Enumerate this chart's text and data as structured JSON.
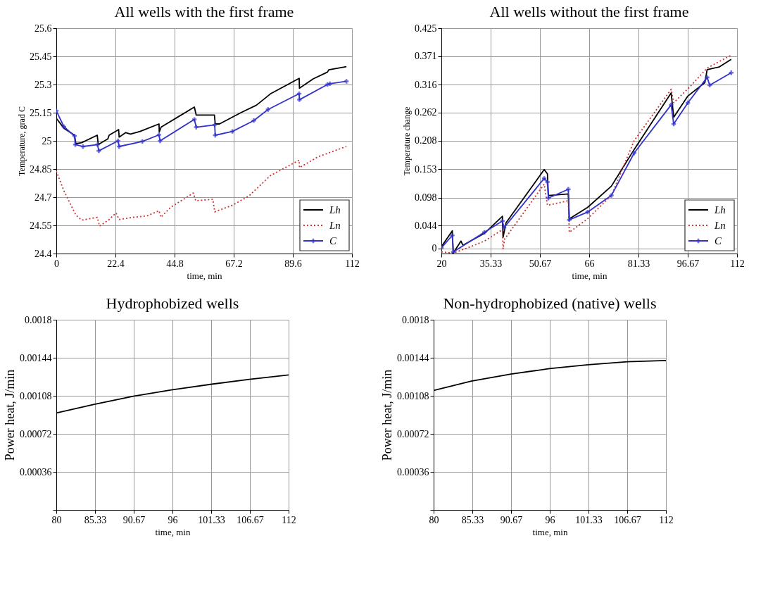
{
  "chart_data": [
    {
      "type": "line",
      "title": "All wells with the first frame",
      "xlabel": "time, min",
      "ylabel": "Temperature, grad C",
      "xlim": [
        0,
        112
      ],
      "xticks": [
        0,
        22.4,
        44.8,
        67.2,
        89.6,
        112
      ],
      "ylim": [
        24.4,
        25.6
      ],
      "yticks": [
        24.4,
        24.55,
        24.7,
        24.85,
        25,
        25.15,
        25.3,
        25.45,
        25.6
      ],
      "grid": true,
      "legend": "bottom right",
      "series": [
        {
          "name": "Lh",
          "color": "#000000",
          "line_style": "solid",
          "marker": "none",
          "x": [
            0,
            2.9,
            6.9,
            7.4,
            9.6,
            15.5,
            15.9,
            19.5,
            20,
            23.6,
            23.8,
            26.3,
            28.1,
            31.7,
            38.9,
            39,
            39.7,
            52.3,
            53,
            59.9,
            60.2,
            61.8,
            70.3,
            75.8,
            81.1,
            92,
            92.1,
            97.3,
            102.7,
            103.2,
            109.9
          ],
          "values": [
            25.12,
            25.067,
            25.03,
            24.985,
            24.99,
            25.03,
            24.98,
            25.01,
            25.03,
            25.06,
            25.02,
            25.044,
            25.036,
            25.05,
            25.09,
            25.047,
            25.073,
            25.18,
            25.137,
            25.137,
            25.09,
            25.09,
            25.153,
            25.19,
            25.25,
            25.333,
            25.28,
            25.33,
            25.366,
            25.378,
            25.395
          ]
        },
        {
          "name": "Ln",
          "color": "#cc3333",
          "line_style": "dotted",
          "marker": "none",
          "x": [
            0,
            2.9,
            7.4,
            9.6,
            15.5,
            16.4,
            20,
            22.6,
            23.8,
            29,
            34.3,
            38.9,
            39.6,
            43.3,
            51.9,
            52.8,
            59.3,
            60,
            66.7,
            73,
            81.1,
            92,
            92.1,
            99.1,
            109.9
          ],
          "values": [
            24.839,
            24.733,
            24.605,
            24.578,
            24.593,
            24.546,
            24.581,
            24.616,
            24.581,
            24.593,
            24.6,
            24.628,
            24.593,
            24.646,
            24.722,
            24.681,
            24.689,
            24.622,
            24.657,
            24.707,
            24.815,
            24.897,
            24.857,
            24.915,
            24.97
          ]
        },
        {
          "name": "C",
          "color": "#3333cc",
          "line_style": "solid",
          "marker": "cross",
          "x": [
            0,
            2.9,
            6.9,
            7.2,
            10.1,
            15.6,
            16.1,
            23.4,
            23.8,
            32.6,
            38.9,
            39.3,
            52.3,
            53,
            60,
            60.2,
            66.7,
            74.8,
            80.2,
            92,
            92.1,
            102.7,
            103.6,
            109.9
          ],
          "values": [
            25.16,
            25.075,
            25.026,
            24.98,
            24.97,
            24.98,
            24.947,
            25.0,
            24.97,
            24.997,
            25.032,
            25.0,
            25.114,
            25.073,
            25.085,
            25.03,
            25.05,
            25.108,
            25.167,
            25.251,
            25.219,
            25.3,
            25.304,
            25.317
          ]
        }
      ]
    },
    {
      "type": "line",
      "title": "All wells without the first frame",
      "xlabel": "time, min",
      "ylabel": "Temperature change",
      "xlim": [
        20,
        112
      ],
      "xticks": [
        20,
        35.33,
        50.67,
        66,
        81.33,
        96.67,
        112
      ],
      "ylim": [
        -0.01,
        0.425
      ],
      "yticks": [
        0,
        0.044,
        0.098,
        0.153,
        0.208,
        0.262,
        0.316,
        0.371,
        0.425
      ],
      "grid": true,
      "legend": "bottom right",
      "series": [
        {
          "name": "Lh",
          "color": "#000000",
          "line_style": "solid",
          "marker": "none",
          "x": [
            20,
            23.4,
            23.7,
            26.1,
            26.7,
            33.4,
            39,
            39.2,
            40.1,
            52,
            53,
            53.3,
            59.5,
            59.8,
            65.5,
            72.9,
            80,
            91.5,
            92.3,
            96.7,
            102,
            102.7,
            106.4,
            110.2
          ],
          "values": [
            0.003,
            0.034,
            -0.009,
            0.014,
            0.006,
            0.029,
            0.062,
            0.021,
            0.049,
            0.152,
            0.144,
            0.102,
            0.105,
            0.057,
            0.079,
            0.12,
            0.191,
            0.3,
            0.253,
            0.294,
            0.32,
            0.345,
            0.35,
            0.365
          ]
        },
        {
          "name": "Ln",
          "color": "#cc3333",
          "line_style": "dotted",
          "marker": "none",
          "x": [
            20,
            23.7,
            28.2,
            33.4,
            39,
            39.2,
            39.7,
            52,
            53,
            59.5,
            59.8,
            65.5,
            72.9,
            80,
            91.5,
            92.3,
            97.5,
            102.7,
            110.2
          ],
          "values": [
            -0.007,
            -0.009,
            0.001,
            0.014,
            0.036,
            -0.001,
            0.018,
            0.124,
            0.083,
            0.092,
            0.031,
            0.057,
            0.102,
            0.208,
            0.307,
            0.281,
            0.313,
            0.348,
            0.373
          ]
        },
        {
          "name": "C",
          "color": "#3333cc",
          "line_style": "solid",
          "marker": "cross",
          "x": [
            20,
            23.4,
            23.7,
            33.4,
            39,
            39.5,
            52,
            53,
            53.3,
            59.5,
            59.8,
            65.5,
            72.9,
            80,
            91.5,
            92.3,
            96.7,
            102.7,
            103.5,
            110.2
          ],
          "values": [
            0.001,
            0.025,
            -0.007,
            0.031,
            0.053,
            0.04,
            0.135,
            0.128,
            0.097,
            0.114,
            0.055,
            0.07,
            0.102,
            0.184,
            0.277,
            0.24,
            0.281,
            0.33,
            0.315,
            0.339
          ]
        }
      ]
    },
    {
      "type": "line",
      "title": "Hydrophobized wells",
      "xlabel": "time, min",
      "ylabel": "Power heat, J/min",
      "xlim": [
        80,
        112
      ],
      "xticks": [
        80,
        85.33,
        90.67,
        96,
        101.33,
        106.67,
        112
      ],
      "ylim": [
        0,
        0.0018
      ],
      "yticks": [
        {
          "value": 0,
          "label": null
        },
        0.00036,
        0.00072,
        0.00108,
        0.00144,
        0.0018
      ],
      "grid": true,
      "series": [
        {
          "color": "#000000",
          "line_style": "solid",
          "marker": "none",
          "x": [
            80,
            85.23,
            90.6,
            96,
            101.4,
            106.6,
            112
          ],
          "values": [
            0.000918,
            0.000999,
            0.001076,
            0.001137,
            0.00119,
            0.001236,
            0.001278
          ]
        }
      ]
    },
    {
      "type": "line",
      "title": "Non-hydrophobized (native) wells",
      "xlabel": "time, min",
      "ylabel": "Power heat, J/min",
      "xlim": [
        80,
        112
      ],
      "xticks": [
        80,
        85.33,
        90.67,
        96,
        101.33,
        106.67,
        112
      ],
      "ylim": [
        0,
        0.0018
      ],
      "yticks": [
        {
          "value": 0,
          "label": null
        },
        0.00036,
        0.00072,
        0.00108,
        0.00144,
        0.0018
      ],
      "grid": true,
      "series": [
        {
          "color": "#000000",
          "line_style": "solid",
          "marker": "none",
          "x": [
            80,
            85.2,
            90.66,
            95.96,
            101.3,
            106.7,
            112
          ],
          "values": [
            0.00113,
            0.001219,
            0.001286,
            0.001337,
            0.001374,
            0.001403,
            0.001414
          ]
        }
      ]
    }
  ]
}
